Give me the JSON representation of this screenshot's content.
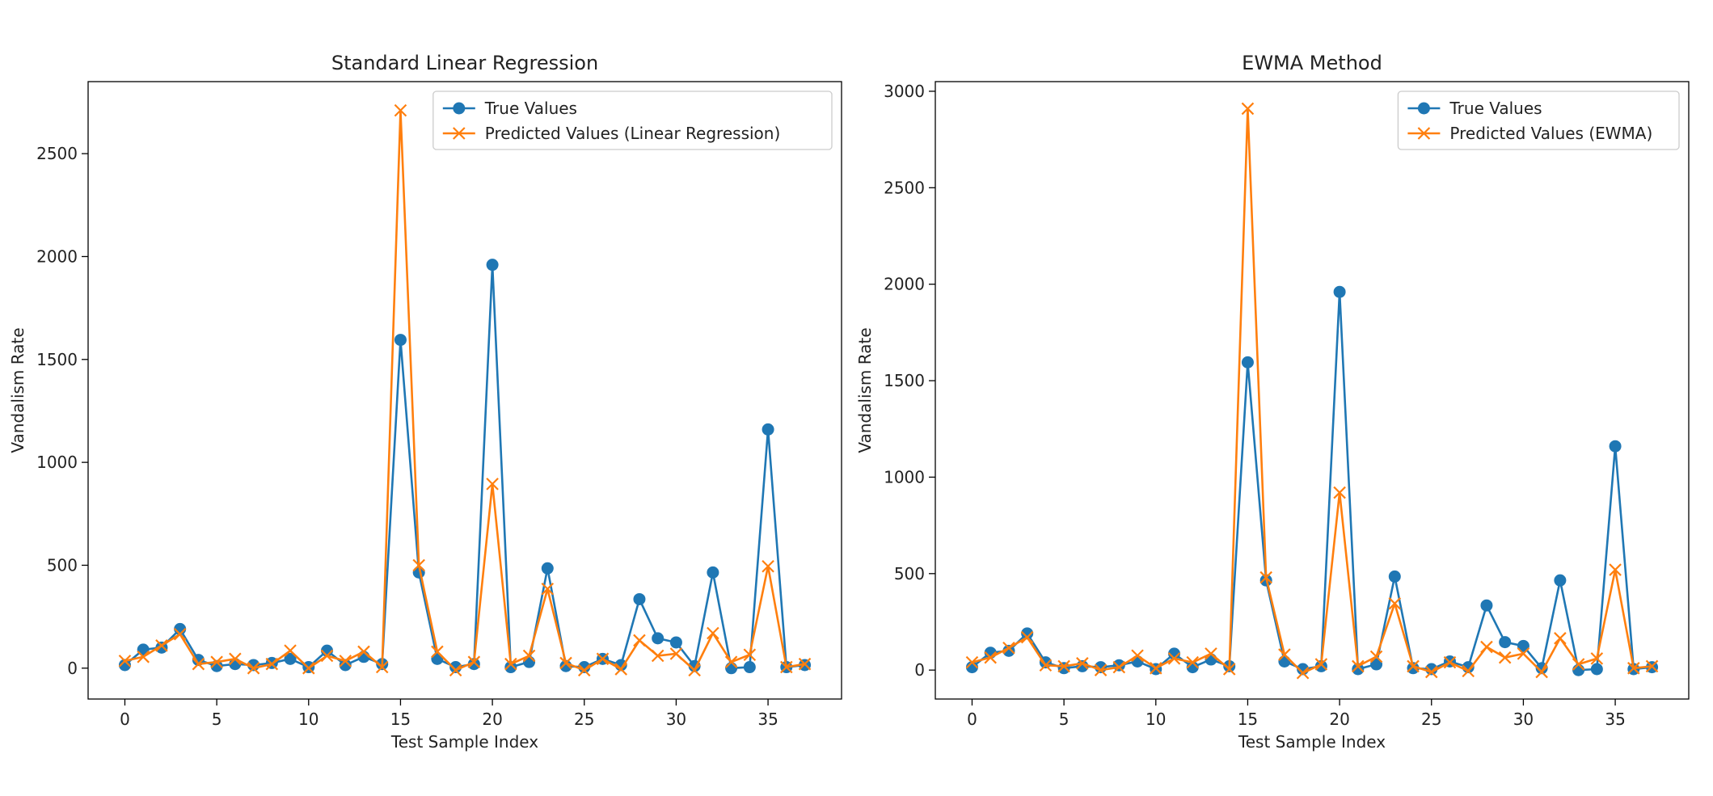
{
  "chart_data": [
    {
      "type": "line",
      "title": "Standard Linear Regression",
      "xlabel": "Test Sample Index",
      "ylabel": "Vandalism Rate",
      "xlim": [
        -2,
        39
      ],
      "ylim": [
        -150,
        2850
      ],
      "xticks": [
        0,
        5,
        10,
        15,
        20,
        25,
        30,
        35
      ],
      "yticks": [
        0,
        500,
        1000,
        1500,
        2000,
        2500
      ],
      "legend_position": "top-right",
      "grid": false,
      "x": [
        0,
        1,
        2,
        3,
        4,
        5,
        6,
        7,
        8,
        9,
        10,
        11,
        12,
        13,
        14,
        15,
        16,
        17,
        18,
        19,
        20,
        21,
        22,
        23,
        24,
        25,
        26,
        27,
        28,
        29,
        30,
        31,
        32,
        33,
        34,
        35,
        36,
        37
      ],
      "series": [
        {
          "name": "True Values",
          "marker": "circle",
          "color": "#1f77b4",
          "values": [
            15,
            90,
            100,
            190,
            40,
            10,
            20,
            15,
            25,
            45,
            5,
            85,
            15,
            55,
            20,
            1595,
            465,
            45,
            5,
            20,
            1960,
            5,
            30,
            485,
            10,
            5,
            45,
            15,
            335,
            145,
            125,
            10,
            465,
            0,
            5,
            1160,
            5,
            15
          ]
        },
        {
          "name": "Predicted Values (Linear Regression)",
          "marker": "x",
          "color": "#ff7f0e",
          "values": [
            35,
            55,
            110,
            165,
            20,
            30,
            45,
            0,
            20,
            85,
            0,
            60,
            35,
            80,
            5,
            2710,
            500,
            80,
            -10,
            30,
            895,
            20,
            60,
            385,
            25,
            -10,
            45,
            -5,
            135,
            60,
            70,
            -10,
            170,
            30,
            65,
            495,
            5,
            20
          ]
        }
      ]
    },
    {
      "type": "line",
      "title": "EWMA Method",
      "xlabel": "Test Sample Index",
      "ylabel": "Vandalism Rate",
      "xlim": [
        -2,
        39
      ],
      "ylim": [
        -150,
        3050
      ],
      "xticks": [
        0,
        5,
        10,
        15,
        20,
        25,
        30,
        35
      ],
      "yticks": [
        0,
        500,
        1000,
        1500,
        2000,
        2500,
        3000
      ],
      "legend_position": "top-right",
      "grid": false,
      "x": [
        0,
        1,
        2,
        3,
        4,
        5,
        6,
        7,
        8,
        9,
        10,
        11,
        12,
        13,
        14,
        15,
        16,
        17,
        18,
        19,
        20,
        21,
        22,
        23,
        24,
        25,
        26,
        27,
        28,
        29,
        30,
        31,
        32,
        33,
        34,
        35,
        36,
        37
      ],
      "series": [
        {
          "name": "True Values",
          "marker": "circle",
          "color": "#1f77b4",
          "values": [
            15,
            90,
            100,
            190,
            40,
            10,
            20,
            15,
            25,
            45,
            5,
            85,
            15,
            55,
            20,
            1595,
            465,
            45,
            5,
            20,
            1960,
            5,
            30,
            485,
            10,
            5,
            45,
            15,
            335,
            145,
            125,
            10,
            465,
            0,
            5,
            1160,
            5,
            15
          ]
        },
        {
          "name": "Predicted Values (EWMA)",
          "marker": "x",
          "color": "#ff7f0e",
          "values": [
            40,
            65,
            115,
            170,
            25,
            20,
            35,
            0,
            15,
            75,
            10,
            60,
            40,
            85,
            5,
            2910,
            480,
            80,
            -15,
            30,
            920,
            20,
            70,
            345,
            20,
            -10,
            40,
            -5,
            120,
            65,
            85,
            -10,
            165,
            30,
            60,
            520,
            10,
            20
          ]
        }
      ]
    }
  ]
}
